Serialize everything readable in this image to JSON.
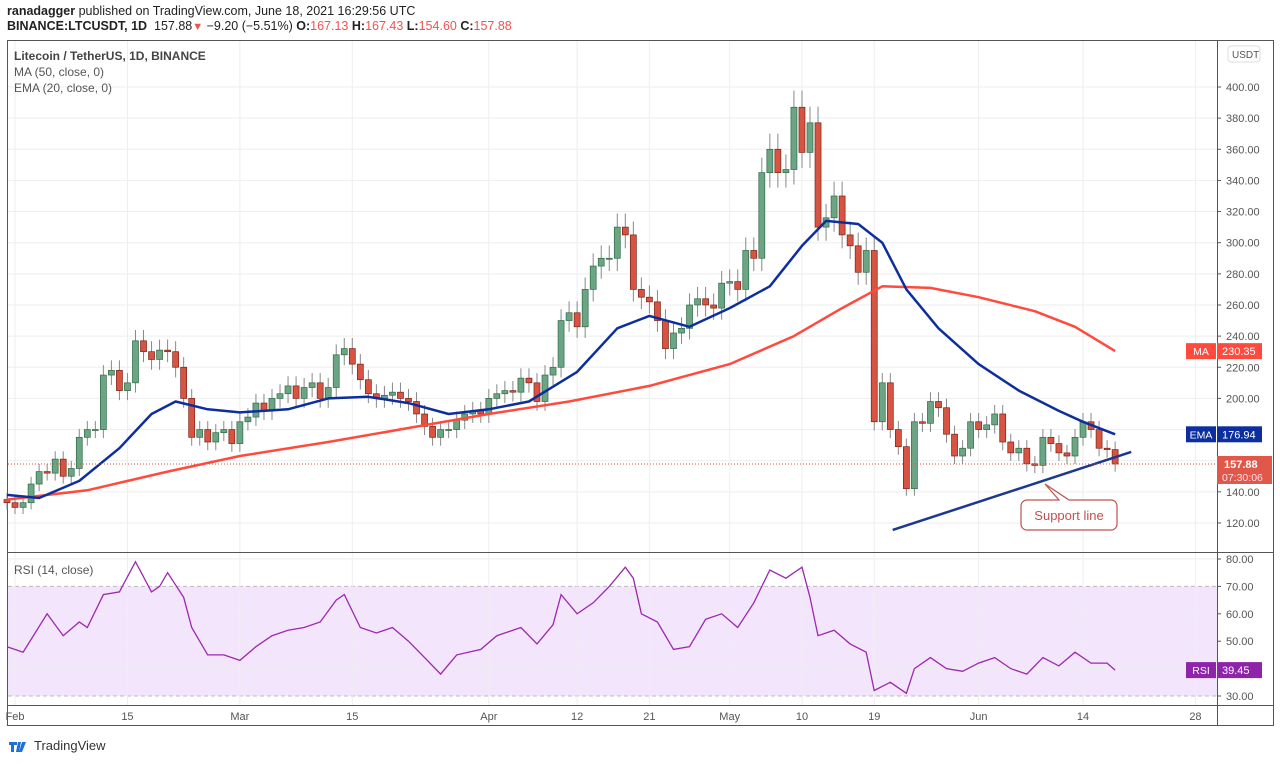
{
  "header": {
    "publisher": "ranadagger",
    "published_text": "published on TradingView.com, June 18, 2021 16:29:56 UTC",
    "symbol": "BINANCE:LTCUSDT, 1D",
    "last": "157.88",
    "change": "−9.20 (−5.51%)",
    "o_label": "O:",
    "o": "167.13",
    "h_label": "H:",
    "h": "167.43",
    "l_label": "L:",
    "l": "154.60",
    "c_label": "C:",
    "c": "157.88"
  },
  "legend": {
    "title": "Litecoin / TetherUS, 1D, BINANCE",
    "ma": "MA (50, close, 0)",
    "ema": "EMA (20, close, 0)",
    "rsi": "RSI (14, close)"
  },
  "footer": {
    "brand": "TradingView"
  },
  "colors": {
    "up": "#6ba583",
    "down": "#d75442",
    "ma": "#ff4a3d",
    "ema": "#0d2f9e",
    "rsi": "#9c27b0",
    "rsi_band": "#f3e5fc"
  },
  "chart_data": {
    "type": "candlestick",
    "title": "Litecoin / TetherUS, 1D, BINANCE",
    "start_date": "2021-01-31",
    "first_open": 135,
    "close": [
      133,
      130,
      133,
      145,
      153,
      152,
      161,
      150,
      155,
      175,
      180,
      180,
      215,
      218,
      205,
      210,
      237,
      230,
      225,
      231,
      230,
      220,
      200,
      175,
      180,
      172,
      178,
      180,
      171,
      185,
      188,
      197,
      192,
      200,
      203,
      208,
      200,
      207,
      210,
      200,
      207,
      228,
      232,
      222,
      212,
      203,
      200,
      202,
      204,
      200,
      198,
      190,
      182,
      175,
      180,
      180,
      186,
      190,
      192,
      190,
      200,
      203,
      205,
      204,
      213,
      210,
      198,
      215,
      220,
      250,
      255,
      246,
      270,
      285,
      290,
      290,
      310,
      305,
      270,
      265,
      262,
      250,
      232,
      242,
      245,
      260,
      264,
      260,
      258,
      274,
      275,
      270,
      295,
      290,
      345,
      360,
      345,
      347,
      387,
      358,
      377,
      310,
      316,
      330,
      305,
      298,
      281,
      295,
      185,
      210,
      180,
      169,
      142,
      185,
      184,
      198,
      194,
      177,
      163,
      168,
      185,
      180,
      183,
      190,
      172,
      165,
      168,
      158,
      157,
      175,
      171,
      165,
      163,
      175,
      185,
      180,
      168,
      167.13,
      157.88
    ],
    "ylim": [
      105,
      425
    ],
    "yticks": [
      "120.00",
      "140.00",
      "160.00",
      "180.00",
      "200.00",
      "220.00",
      "240.00",
      "260.00",
      "280.00",
      "300.00",
      "320.00",
      "340.00",
      "360.00",
      "380.00",
      "400.00"
    ],
    "ytick_values": [
      120,
      140,
      160,
      180,
      200,
      220,
      240,
      260,
      280,
      300,
      320,
      340,
      360,
      380,
      400
    ],
    "xticks": [
      {
        "label": "Feb",
        "day": 1
      },
      {
        "label": "15",
        "day": 15
      },
      {
        "label": "Mar",
        "day": 29
      },
      {
        "label": "15",
        "day": 43
      },
      {
        "label": "Apr",
        "day": 60
      },
      {
        "label": "12",
        "day": 71
      },
      {
        "label": "21",
        "day": 80
      },
      {
        "label": "May",
        "day": 90
      },
      {
        "label": "10",
        "day": 99
      },
      {
        "label": "19",
        "day": 108
      },
      {
        "label": "Jun",
        "day": 121
      },
      {
        "label": "14",
        "day": 134
      },
      {
        "label": "28",
        "day": 148
      }
    ],
    "ma50": [
      [
        0,
        135
      ],
      [
        10,
        141
      ],
      [
        20,
        153
      ],
      [
        29,
        163
      ],
      [
        40,
        172
      ],
      [
        50,
        181
      ],
      [
        60,
        190
      ],
      [
        70,
        198
      ],
      [
        80,
        208
      ],
      [
        90,
        222
      ],
      [
        98,
        240
      ],
      [
        104,
        258
      ],
      [
        109,
        272
      ],
      [
        115,
        271
      ],
      [
        121,
        265
      ],
      [
        128,
        256
      ],
      [
        133,
        246
      ],
      [
        138,
        230.35
      ]
    ],
    "ema20": [
      [
        0,
        138
      ],
      [
        4,
        136
      ],
      [
        9,
        147
      ],
      [
        14,
        168
      ],
      [
        18,
        190
      ],
      [
        21,
        198
      ],
      [
        25,
        193
      ],
      [
        29,
        191
      ],
      [
        35,
        193
      ],
      [
        40,
        200
      ],
      [
        45,
        201
      ],
      [
        50,
        197
      ],
      [
        55,
        190
      ],
      [
        60,
        193
      ],
      [
        65,
        198
      ],
      [
        71,
        217
      ],
      [
        76,
        245
      ],
      [
        80,
        253
      ],
      [
        85,
        246
      ],
      [
        90,
        258
      ],
      [
        95,
        272
      ],
      [
        99,
        298
      ],
      [
        102,
        314
      ],
      [
        106,
        312
      ],
      [
        109,
        300
      ],
      [
        112,
        270
      ],
      [
        116,
        245
      ],
      [
        121,
        222
      ],
      [
        126,
        205
      ],
      [
        131,
        192
      ],
      [
        134,
        185
      ],
      [
        138,
        176.94
      ]
    ],
    "support_line": {
      "label": "Support line",
      "from": [
        110.3,
        115.5
      ],
      "to": [
        140,
        165.6
      ]
    },
    "last_price": {
      "value": "157.88",
      "countdown": "07:30:06"
    },
    "ma_label": {
      "name": "MA",
      "value": "230.35"
    },
    "ema_label": {
      "name": "EMA",
      "value": "176.94"
    },
    "currency": "USDT",
    "rsi": {
      "title": "RSI (14, close)",
      "value": "39.45",
      "name": "RSI",
      "ylim": [
        27,
        82
      ],
      "band": [
        30,
        70
      ],
      "yticks": [
        "30.00",
        "40.00",
        "50.00",
        "60.00",
        "70.00",
        "80.00"
      ],
      "ytick_values": [
        30,
        40,
        50,
        60,
        70,
        80
      ],
      "points": [
        [
          0,
          48
        ],
        [
          2,
          46
        ],
        [
          5,
          60
        ],
        [
          7,
          52
        ],
        [
          9,
          57
        ],
        [
          10,
          55
        ],
        [
          12,
          67
        ],
        [
          14,
          68
        ],
        [
          16,
          79
        ],
        [
          18,
          68
        ],
        [
          19,
          70
        ],
        [
          20,
          75
        ],
        [
          22,
          66
        ],
        [
          23,
          55
        ],
        [
          25,
          45
        ],
        [
          27,
          45
        ],
        [
          29,
          43
        ],
        [
          31,
          48
        ],
        [
          33,
          52
        ],
        [
          35,
          54
        ],
        [
          37,
          55
        ],
        [
          39,
          57
        ],
        [
          41,
          65
        ],
        [
          42,
          67
        ],
        [
          44,
          55
        ],
        [
          46,
          53
        ],
        [
          48,
          55
        ],
        [
          50,
          50
        ],
        [
          52,
          44
        ],
        [
          54,
          38
        ],
        [
          56,
          45
        ],
        [
          59,
          47
        ],
        [
          61,
          52
        ],
        [
          64,
          55
        ],
        [
          66,
          49
        ],
        [
          68,
          56
        ],
        [
          69,
          67
        ],
        [
          71,
          60
        ],
        [
          73,
          64
        ],
        [
          75,
          70
        ],
        [
          77,
          77
        ],
        [
          78,
          73
        ],
        [
          79,
          60
        ],
        [
          81,
          57
        ],
        [
          83,
          47
        ],
        [
          85,
          48
        ],
        [
          87,
          58
        ],
        [
          89,
          60
        ],
        [
          91,
          55
        ],
        [
          93,
          64
        ],
        [
          95,
          76
        ],
        [
          97,
          73
        ],
        [
          99,
          77
        ],
        [
          100,
          66
        ],
        [
          101,
          52
        ],
        [
          103,
          54
        ],
        [
          105,
          49
        ],
        [
          107,
          46
        ],
        [
          108,
          32
        ],
        [
          110,
          35
        ],
        [
          112,
          31
        ],
        [
          113,
          40
        ],
        [
          115,
          44
        ],
        [
          117,
          40
        ],
        [
          119,
          39
        ],
        [
          121,
          42
        ],
        [
          123,
          44
        ],
        [
          125,
          40
        ],
        [
          127,
          38
        ],
        [
          129,
          44
        ],
        [
          131,
          41
        ],
        [
          133,
          46
        ],
        [
          135,
          42
        ],
        [
          137,
          42
        ],
        [
          138,
          39.45
        ]
      ]
    }
  }
}
